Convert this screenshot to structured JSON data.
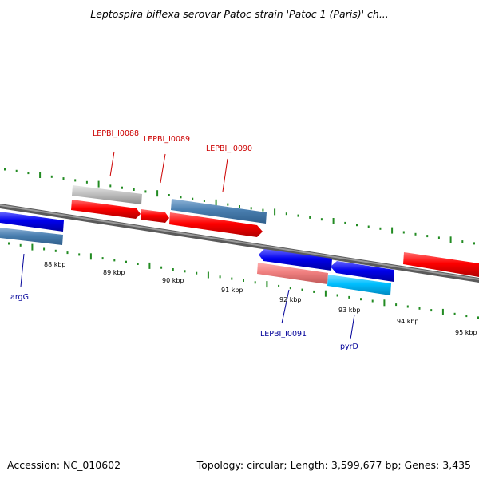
{
  "title": "Leptospira biflexa serovar Patoc strain 'Patoc 1 (Paris)' ch...",
  "accession": "Accession: NC_010602",
  "topology": "Topology: circular; Length: 3,599,677 bp; Genes: 3,435",
  "scale_labels": [
    "88 kbp",
    "89 kbp",
    "90 kbp",
    "91 kbp",
    "92 kbp",
    "93 kbp",
    "94 kbp",
    "95 kbp"
  ],
  "gene_labels": [
    {
      "text": "LEPBI_I0088",
      "color": "#cc0000"
    },
    {
      "text": "LEPBI_I0089",
      "color": "#cc0000"
    },
    {
      "text": "LEPBI_I0090",
      "color": "#cc0000"
    },
    {
      "text": "argG",
      "color": "#000099"
    },
    {
      "text": "LEPBI_I0091",
      "color": "#000099"
    },
    {
      "text": "pyrD",
      "color": "#000099"
    }
  ],
  "colors": {
    "backbone": "#808080",
    "tick": "#228b22",
    "red": "#ff0000",
    "blue": "#0000ee",
    "steelblue": "#4a7fb0",
    "grey": "#c0c0c0",
    "pink": "#f08080",
    "cyan": "#00bfff"
  }
}
